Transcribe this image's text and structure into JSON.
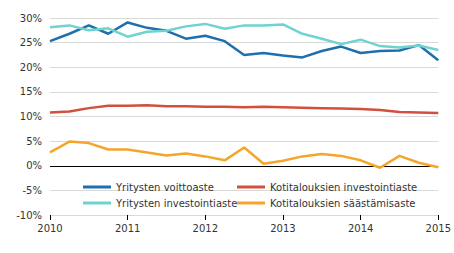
{
  "chart_data": {
    "type": "line",
    "categories": [
      "2010",
      null,
      null,
      null,
      "2011",
      null,
      null,
      null,
      "2012",
      null,
      null,
      null,
      "2013",
      null,
      null,
      null,
      "2014",
      null,
      null,
      null,
      "2015"
    ],
    "series": [
      {
        "name": "Yritysten voittoaste",
        "color": "#1f6fad",
        "values": [
          25.3,
          26.8,
          28.5,
          26.8,
          29.1,
          28.0,
          27.4,
          25.8,
          26.4,
          25.3,
          22.5,
          22.9,
          22.4,
          22.0,
          23.3,
          24.2,
          22.9,
          23.3,
          23.4,
          24.5,
          21.4
        ]
      },
      {
        "name": "Yritysten investointiaste",
        "color": "#6fd3cf",
        "values": [
          28.1,
          28.5,
          27.5,
          27.9,
          26.2,
          27.2,
          27.4,
          28.3,
          28.8,
          27.8,
          28.5,
          28.5,
          28.7,
          26.8,
          25.8,
          24.7,
          25.6,
          24.3,
          24.0,
          24.4,
          23.5
        ]
      },
      {
        "name": "Kotitalouksien investointiaste",
        "color": "#d2503f",
        "values": [
          10.8,
          11.0,
          11.7,
          12.2,
          12.2,
          12.3,
          12.1,
          12.1,
          12.0,
          12.0,
          11.9,
          12.0,
          11.9,
          11.8,
          11.7,
          11.6,
          11.5,
          11.3,
          10.9,
          10.8,
          10.7
        ]
      },
      {
        "name": "Kotitalouksien säästämisaste",
        "color": "#f5a52a",
        "values": [
          2.7,
          4.9,
          4.6,
          3.3,
          3.3,
          2.7,
          2.1,
          2.5,
          1.9,
          1.1,
          3.7,
          0.4,
          1.0,
          1.9,
          2.4,
          2.0,
          1.1,
          -0.4,
          2.0,
          0.6,
          -0.3
        ]
      }
    ],
    "ylim": [
      -10,
      30
    ],
    "yticks": [
      {
        "value": -10,
        "label": "-10%"
      },
      {
        "value": -5,
        "label": "-5%"
      },
      {
        "value": 0,
        "label": "0%"
      },
      {
        "value": 5,
        "label": "5%"
      },
      {
        "value": 10,
        "label": "10%"
      },
      {
        "value": 15,
        "label": "15%"
      },
      {
        "value": 20,
        "label": "20%"
      },
      {
        "value": 25,
        "label": "25%"
      },
      {
        "value": 30,
        "label": "30%"
      }
    ],
    "grid": true,
    "legend": "bottom"
  }
}
